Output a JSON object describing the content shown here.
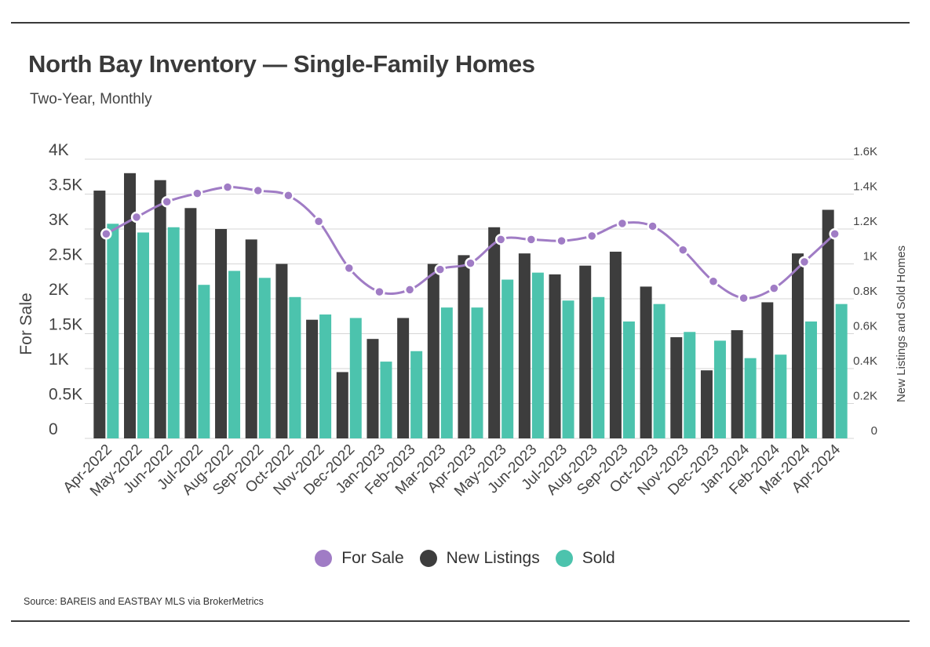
{
  "title": "North Bay Inventory — Single-Family Homes",
  "subtitle": "Two-Year, Monthly",
  "source": "Source:  BAREIS and EASTBAY MLS via BrokerMetrics",
  "colors": {
    "for_sale": "#a07cc5",
    "new_listings": "#3d3d3d",
    "sold": "#4cc3ad"
  },
  "chart_data": {
    "type": "bar",
    "categories": [
      "Apr-2022",
      "May-2022",
      "Jun-2022",
      "Jul-2022",
      "Aug-2022",
      "Sep-2022",
      "Oct-2022",
      "Nov-2022",
      "Dec-2022",
      "Jan-2023",
      "Feb-2023",
      "Mar-2023",
      "Apr-2023",
      "May-2023",
      "Jun-2023",
      "Jul-2023",
      "Aug-2023",
      "Sep-2023",
      "Oct-2023",
      "Nov-2023",
      "Dec-2023",
      "Jan-2024",
      "Feb-2024",
      "Mar-2024",
      "Apr-2024"
    ],
    "series": [
      {
        "name": "For Sale",
        "type": "line",
        "axis": "left",
        "values": [
          2930,
          3170,
          3390,
          3510,
          3600,
          3550,
          3480,
          3110,
          2440,
          2100,
          2130,
          2420,
          2510,
          2850,
          2850,
          2830,
          2900,
          3080,
          3040,
          2700,
          2250,
          2010,
          2150,
          2530,
          2930
        ]
      },
      {
        "name": "New Listings",
        "type": "bar",
        "axis": "right",
        "values": [
          1420,
          1520,
          1480,
          1320,
          1200,
          1140,
          1000,
          680,
          380,
          570,
          690,
          1000,
          1050,
          1210,
          1060,
          940,
          990,
          1070,
          870,
          580,
          390,
          620,
          780,
          1060,
          1310
        ]
      },
      {
        "name": "Sold",
        "type": "bar",
        "axis": "right",
        "values": [
          1230,
          1180,
          1210,
          880,
          960,
          920,
          810,
          710,
          690,
          440,
          500,
          750,
          750,
          910,
          950,
          790,
          810,
          670,
          770,
          610,
          560,
          460,
          480,
          670,
          770
        ]
      }
    ],
    "xlabel": "",
    "ylabel": "For Sale",
    "ylabel_right": "New Listings and Sold Homes",
    "ylim": [
      0,
      4000
    ],
    "ylim_right": [
      0,
      1600
    ],
    "yticks": [
      "0",
      "0.5K",
      "1K",
      "1.5K",
      "2K",
      "2.5K",
      "3K",
      "3.5K",
      "4K"
    ],
    "yticks_right": [
      "0",
      "0.2K",
      "0.4K",
      "0.6K",
      "0.8K",
      "1K",
      "1.2K",
      "1.4K",
      "1.6K"
    ],
    "grid": true,
    "legend_position": "bottom"
  }
}
